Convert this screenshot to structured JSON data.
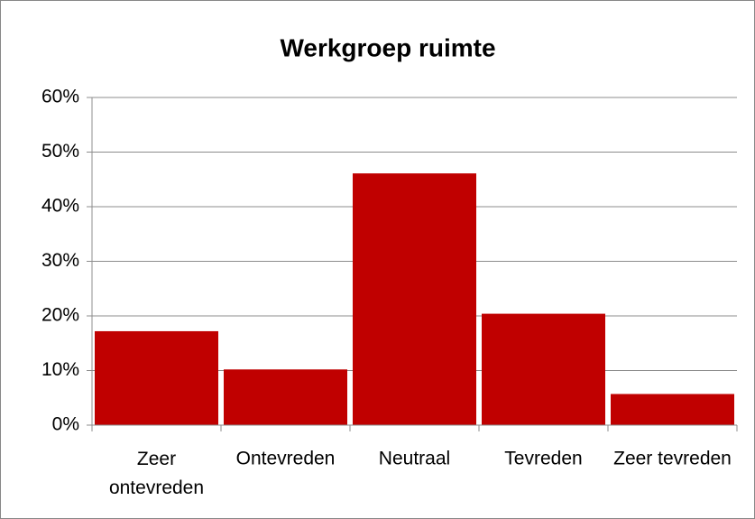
{
  "chart_data": {
    "type": "bar",
    "title": "Werkgroep ruimte",
    "categories": [
      "Zeer ontevreden",
      "Ontevreden",
      "Neutraal",
      "Tevreden",
      "Zeer tevreden"
    ],
    "values": [
      17.2,
      10.2,
      46.1,
      20.4,
      5.7
    ],
    "color": "#c00000",
    "ylim": [
      0,
      60
    ],
    "yticks": [
      {
        "value": 0,
        "label": "0%"
      },
      {
        "value": 10,
        "label": "10%"
      },
      {
        "value": 20,
        "label": "20%"
      },
      {
        "value": 30,
        "label": "30%"
      },
      {
        "value": 40,
        "label": "40%"
      },
      {
        "value": 50,
        "label": "50%"
      },
      {
        "value": 60,
        "label": "60%"
      }
    ],
    "grid": true
  }
}
